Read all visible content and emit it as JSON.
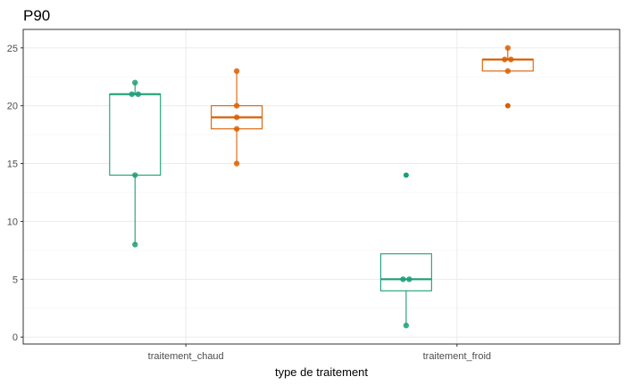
{
  "chart_data": {
    "type": "boxplot",
    "title": "P90",
    "xlabel": "type de traitement",
    "ylabel": "",
    "categories": [
      "traitement_chaud",
      "traitement_froid"
    ],
    "ylim": [
      -0.6,
      26.6
    ],
    "yticks": [
      0,
      5,
      10,
      15,
      20,
      25
    ],
    "grid": true,
    "legend": "none",
    "series": [
      {
        "color": "#1b9e77",
        "boxes": [
          {
            "q1": 14,
            "median": 21,
            "q3": 21,
            "whisker_low": 8,
            "whisker_high": 22,
            "points": [
              22,
              21,
              21,
              14,
              8
            ],
            "outliers": []
          },
          {
            "q1": 4,
            "median": 5,
            "q3": 7.2,
            "whisker_low": 1,
            "whisker_high": 7.2,
            "points": [
              5,
              5,
              1
            ],
            "outliers": [
              14
            ]
          }
        ]
      },
      {
        "color": "#d95f02",
        "boxes": [
          {
            "q1": 18,
            "median": 19,
            "q3": 20,
            "whisker_low": 15,
            "whisker_high": 23,
            "points": [
              23,
              20,
              19,
              18,
              15
            ],
            "outliers": []
          },
          {
            "q1": 23,
            "median": 24,
            "q3": 24,
            "whisker_low": 23,
            "whisker_high": 25,
            "points": [
              25,
              24,
              24,
              23
            ],
            "outliers": [
              20
            ]
          }
        ]
      }
    ]
  }
}
